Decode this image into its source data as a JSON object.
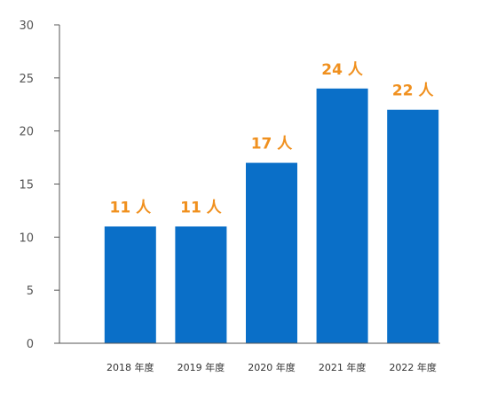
{
  "chart_data": {
    "type": "bar",
    "categories": [
      "2018 年度",
      "2019 年度",
      "2020 年度",
      "2021 年度",
      "2022 年度"
    ],
    "values": [
      11,
      11,
      17,
      24,
      22
    ],
    "data_labels": [
      "11 人",
      "11 人",
      "17 人",
      "24 人",
      "22 人"
    ],
    "title": "",
    "xlabel": "",
    "ylabel": "",
    "ylim": [
      0,
      30
    ],
    "yticks": [
      0,
      5,
      10,
      15,
      20,
      25,
      30
    ],
    "grid": false,
    "legend": "none",
    "bar_color": "#0a6fc8",
    "label_color": "#f0901e"
  }
}
